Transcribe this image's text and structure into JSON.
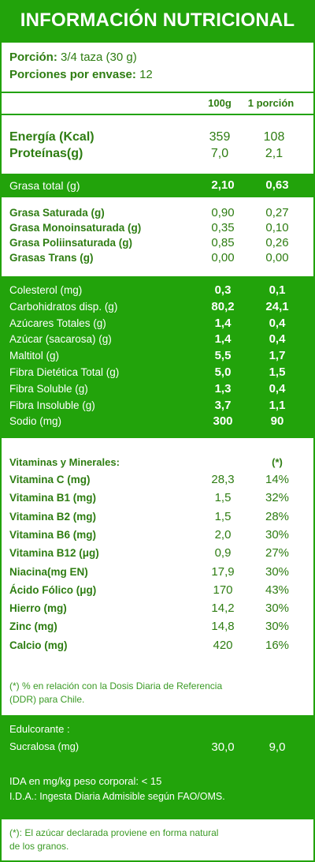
{
  "title": "INFORMACIÓN NUTRICIONAL",
  "portion": {
    "label": "Porción:",
    "value": "3/4 taza (30 g)"
  },
  "servings": {
    "label": "Porciones por envase:",
    "value": "12"
  },
  "headers": {
    "col1": "100g",
    "col2": "1 porción"
  },
  "energy": [
    {
      "label": "Energía (Kcal)",
      "v1": "359",
      "v2": "108"
    },
    {
      "label": "Proteínas(g)",
      "v1": "7,0",
      "v2": "2,1"
    }
  ],
  "fat_total": {
    "label": "Grasa total (g)",
    "v1": "2,10",
    "v2": "0,63"
  },
  "fats": [
    {
      "label": "Grasa Saturada (g)",
      "v1": "0,90",
      "v2": "0,27"
    },
    {
      "label": "Grasa Monoinsaturada (g)",
      "v1": "0,35",
      "v2": "0,10"
    },
    {
      "label": "Grasa Poliinsaturada (g)",
      "v1": "0,85",
      "v2": "0,26"
    },
    {
      "label": "Grasas Trans (g)",
      "v1": "0,00",
      "v2": "0,00"
    }
  ],
  "carbs": [
    {
      "label": "Colesterol (mg)",
      "v1": "0,3",
      "v2": "0,1"
    },
    {
      "label": "Carbohidratos disp. (g)",
      "v1": "80,2",
      "v2": "24,1"
    },
    {
      "label": "Azúcares Totales (g)",
      "v1": "1,4",
      "v2": "0,4"
    },
    {
      "label": "Azúcar (sacarosa) (g)",
      "v1": "1,4",
      "v2": "0,4"
    },
    {
      "label": "Maltitol (g)",
      "v1": "5,5",
      "v2": "1,7"
    },
    {
      "label": "Fibra Dietética Total (g)",
      "v1": "5,0",
      "v2": "1,5"
    },
    {
      "label": "Fibra Soluble (g)",
      "v1": "1,3",
      "v2": "0,4"
    },
    {
      "label": "Fibra Insoluble (g)",
      "v1": "3,7",
      "v2": "1,1"
    },
    {
      "label": "Sodio (mg)",
      "v1": "300",
      "v2": "90"
    }
  ],
  "vitamins_header": {
    "label": "Vitaminas y Minerales:",
    "note": "(*)"
  },
  "vitamins": [
    {
      "label": "Vitamina C (mg)",
      "v1": "28,3",
      "v2": "14%"
    },
    {
      "label": "Vitamina B1 (mg)",
      "v1": "1,5",
      "v2": "32%"
    },
    {
      "label": "Vitamina B2 (mg)",
      "v1": "1,5",
      "v2": "28%"
    },
    {
      "label": "Vitamina B6 (mg)",
      "v1": "2,0",
      "v2": "30%"
    },
    {
      "label": "Vitamina B12 (μg)",
      "v1": "0,9",
      "v2": "27%"
    },
    {
      "label": "Niacina(mg EN)",
      "v1": "17,9",
      "v2": "30%"
    },
    {
      "label": "Ácido Fólico (μg)",
      "v1": "170",
      "v2": "43%"
    },
    {
      "label": "Hierro (mg)",
      "v1": "14,2",
      "v2": "30%"
    },
    {
      "label": "Zinc (mg)",
      "v1": "14,8",
      "v2": "30%"
    },
    {
      "label": "Calcio (mg)",
      "v1": "420",
      "v2": "16%"
    }
  ],
  "ddr_note": {
    "line1": "(*) % en relación con la Dosis Diaria de Referencia",
    "line2": "(DDR) para Chile."
  },
  "sweetener": {
    "title": "Edulcorante :",
    "label": "Sucralosa (mg)",
    "v1": "30,0",
    "v2": "9,0"
  },
  "ida": {
    "line1": "IDA en mg/kg peso corporal: < 15",
    "line2": "I.D.A.: Ingesta Diaria Admisible según FAO/OMS."
  },
  "sugar_note": {
    "line1": "(*): El azúcar declarada proviene en forma natural",
    "line2": "de los granos."
  }
}
